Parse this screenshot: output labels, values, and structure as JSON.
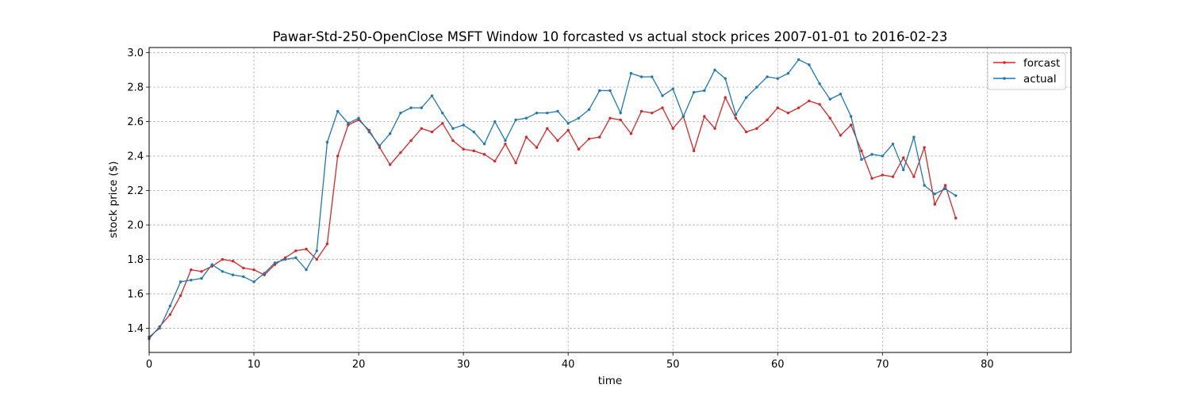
{
  "chart_data": {
    "type": "line",
    "title": "Pawar-Std-250-OpenClose MSFT Window 10 forcasted vs actual stock prices 2007-01-01 to 2016-02-23",
    "xlabel": "time",
    "ylabel": "stock price ($)",
    "xlim": [
      0,
      88
    ],
    "ylim": [
      1.26,
      3.03
    ],
    "xticks": [
      0,
      10,
      20,
      30,
      40,
      50,
      60,
      70,
      80
    ],
    "yticks": [
      1.4,
      1.6,
      1.8,
      2.0,
      2.2,
      2.4,
      2.6,
      2.8,
      3.0
    ],
    "grid": true,
    "legend_position": "top-right",
    "series": [
      {
        "name": "forcast",
        "color": "#d62728",
        "values": [
          1.34,
          1.41,
          1.48,
          1.59,
          1.74,
          1.73,
          1.76,
          1.8,
          1.79,
          1.75,
          1.74,
          1.71,
          1.77,
          1.81,
          1.85,
          1.86,
          1.8,
          1.89,
          2.4,
          2.58,
          2.61,
          2.55,
          2.45,
          2.35,
          2.42,
          2.49,
          2.56,
          2.54,
          2.59,
          2.49,
          2.44,
          2.43,
          2.41,
          2.37,
          2.47,
          2.36,
          2.51,
          2.45,
          2.56,
          2.49,
          2.55,
          2.44,
          2.5,
          2.51,
          2.62,
          2.61,
          2.53,
          2.66,
          2.65,
          2.68,
          2.56,
          2.63,
          2.43,
          2.63,
          2.56,
          2.74,
          2.62,
          2.54,
          2.56,
          2.61,
          2.68,
          2.65,
          2.68,
          2.72,
          2.7,
          2.62,
          2.52,
          2.58,
          2.43,
          2.27,
          2.29,
          2.28,
          2.39,
          2.28,
          2.45,
          2.12,
          2.23,
          2.04
        ]
      },
      {
        "name": "actual",
        "color": "#1f77b4",
        "values": [
          1.35,
          1.4,
          1.53,
          1.67,
          1.68,
          1.69,
          1.77,
          1.73,
          1.71,
          1.7,
          1.67,
          1.72,
          1.78,
          1.8,
          1.81,
          1.74,
          1.85,
          2.48,
          2.66,
          2.59,
          2.62,
          2.54,
          2.46,
          2.53,
          2.65,
          2.68,
          2.68,
          2.75,
          2.65,
          2.56,
          2.58,
          2.54,
          2.47,
          2.6,
          2.49,
          2.61,
          2.62,
          2.65,
          2.65,
          2.66,
          2.59,
          2.62,
          2.67,
          2.78,
          2.78,
          2.65,
          2.88,
          2.86,
          2.86,
          2.75,
          2.79,
          2.63,
          2.77,
          2.78,
          2.9,
          2.85,
          2.64,
          2.74,
          2.8,
          2.86,
          2.85,
          2.88,
          2.96,
          2.93,
          2.82,
          2.73,
          2.76,
          2.63,
          2.38,
          2.41,
          2.4,
          2.47,
          2.32,
          2.51,
          2.23,
          2.18,
          2.21,
          2.17
        ]
      }
    ]
  }
}
